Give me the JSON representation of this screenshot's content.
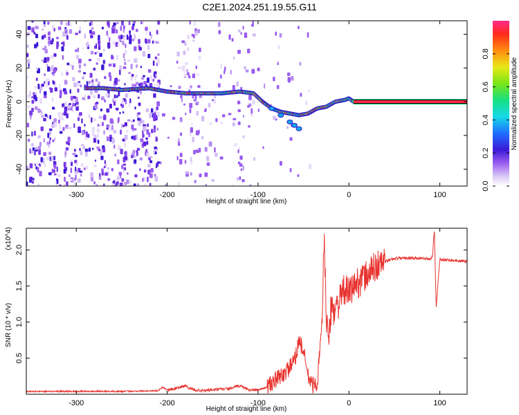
{
  "title": "C2E1.2024.251.19.55.G11",
  "chart_data": [
    {
      "type": "heatmap",
      "xlabel": "Height of straight line (km)",
      "ylabel": "Frequency (Hz)",
      "xlim": [
        -355,
        130
      ],
      "ylim": [
        -50,
        48
      ],
      "xticks": [
        -300,
        -200,
        -100,
        0,
        100
      ],
      "yticks": [
        -40,
        -20,
        0,
        20,
        40
      ],
      "colorbar": {
        "label": "Normalized spectral amplitude",
        "range": [
          0.0,
          1.0
        ],
        "ticks": [
          0.0,
          0.2,
          0.4,
          0.6,
          0.8
        ]
      },
      "ridge": {
        "name": "dominant frequency",
        "x": [
          -290,
          -270,
          -250,
          -220,
          -200,
          -180,
          -160,
          -140,
          -120,
          -105,
          -95,
          -85,
          -75,
          -65,
          -55,
          -45,
          -35,
          -25,
          -15,
          -5,
          0,
          5,
          130
        ],
        "y": [
          8,
          8,
          7,
          8,
          6,
          5,
          5,
          5,
          6,
          5,
          0,
          -4,
          -6,
          -7,
          -8,
          -7,
          -4,
          -3,
          0,
          1,
          2,
          0,
          0
        ]
      },
      "branch": {
        "x": [
          -85,
          -75,
          -65,
          -60,
          -55
        ],
        "y": [
          -4,
          -8,
          -12,
          -14,
          -16
        ]
      }
    },
    {
      "type": "line",
      "xlabel": "Height of straight line (km)",
      "ylabel": "SNR (10 * v/v)",
      "multiplier": "(x10^4)",
      "xlim": [
        -355,
        130
      ],
      "ylim": [
        0,
        2.3
      ],
      "xticks": [
        -300,
        -200,
        -100,
        0,
        100
      ],
      "yticks": [
        0.5,
        1.0,
        1.5,
        2.0
      ],
      "color": "#e8322e",
      "x": [
        -355,
        -300,
        -250,
        -210,
        -205,
        -200,
        -190,
        -180,
        -175,
        -170,
        -160,
        -150,
        -140,
        -130,
        -120,
        -110,
        -100,
        -90,
        -80,
        -70,
        -60,
        -55,
        -50,
        -45,
        -40,
        -35,
        -30,
        -27,
        -25,
        -22,
        -20,
        -15,
        -10,
        -5,
        0,
        5,
        10,
        15,
        20,
        25,
        30,
        40,
        50,
        60,
        70,
        80,
        90,
        92,
        94,
        96,
        100,
        110,
        120,
        130
      ],
      "y": [
        0.04,
        0.04,
        0.04,
        0.05,
        0.1,
        0.06,
        0.08,
        0.12,
        0.08,
        0.06,
        0.05,
        0.06,
        0.07,
        0.08,
        0.12,
        0.06,
        0.06,
        0.1,
        0.2,
        0.3,
        0.45,
        0.75,
        0.6,
        0.25,
        0.12,
        0.15,
        0.9,
        2.2,
        1.1,
        0.7,
        1.15,
        1.2,
        1.3,
        1.45,
        1.4,
        1.5,
        1.55,
        1.6,
        1.65,
        1.72,
        1.78,
        1.84,
        1.88,
        1.89,
        1.89,
        1.88,
        1.88,
        1.92,
        2.28,
        1.2,
        1.87,
        1.86,
        1.85,
        1.84
      ]
    }
  ]
}
